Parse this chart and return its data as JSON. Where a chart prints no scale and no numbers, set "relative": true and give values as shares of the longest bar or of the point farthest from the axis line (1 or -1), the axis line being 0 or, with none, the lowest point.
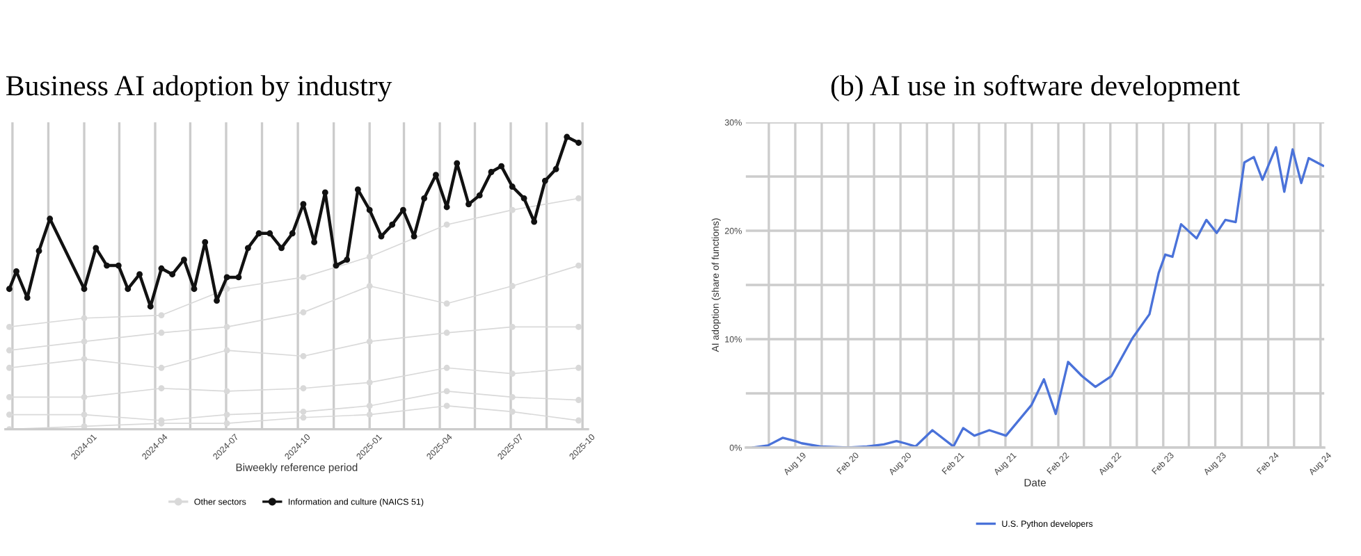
{
  "chart_data": [
    {
      "type": "line",
      "title": "Business AI adoption by industry",
      "xlabel": "Biweekly reference period",
      "relative": true,
      "grid": "x",
      "legend": "bottom",
      "marker": "circle",
      "line_style": "solid",
      "xlim": [
        "2023-09-22",
        "2025-10-08"
      ],
      "xticks": [
        {
          "value": "2023-10-01",
          "label": null
        },
        {
          "value": "2023-11-16",
          "label": null
        },
        {
          "value": "2024-01-01",
          "label": "2024-01"
        },
        {
          "value": "2024-02-15",
          "label": null
        },
        {
          "value": "2024-04-01",
          "label": "2024-04"
        },
        {
          "value": "2024-05-16",
          "label": null
        },
        {
          "value": "2024-07-01",
          "label": "2024-07"
        },
        {
          "value": "2024-08-16",
          "label": null
        },
        {
          "value": "2024-10-01",
          "label": "2024-10"
        },
        {
          "value": "2024-11-16",
          "label": null
        },
        {
          "value": "2025-01-01",
          "label": "2025-01"
        },
        {
          "value": "2025-02-14",
          "label": null
        },
        {
          "value": "2025-04-01",
          "label": "2025-04"
        },
        {
          "value": "2025-05-16",
          "label": null
        },
        {
          "value": "2025-07-01",
          "label": "2025-07"
        },
        {
          "value": "2025-08-16",
          "label": null
        },
        {
          "value": "2025-10-01",
          "label": "2025-10"
        }
      ],
      "series": [
        {
          "name": "Other sectors",
          "color": "#d9d9d9",
          "x": [
            "2023-09-27",
            "2024-01-01",
            "2024-04-09",
            "2024-07-02",
            "2024-10-08",
            "2025-01-01",
            "2025-04-10",
            "2025-07-03",
            "2025-09-26"
          ],
          "values": [
            0.35,
            0.38,
            0.39,
            0.48,
            0.52,
            0.59,
            0.7,
            0.75,
            0.79
          ]
        },
        {
          "color": "#d9d9d9",
          "x": [
            "2023-09-27",
            "2024-01-01",
            "2024-04-09",
            "2024-07-02",
            "2024-10-08",
            "2025-01-01",
            "2025-04-10",
            "2025-07-03",
            "2025-09-26"
          ],
          "values": [
            0.27,
            0.3,
            0.33,
            0.35,
            0.4,
            0.49,
            0.43,
            0.49,
            0.56
          ]
        },
        {
          "color": "#d9d9d9",
          "x": [
            "2023-09-27",
            "2024-01-01",
            "2024-04-09",
            "2024-07-02",
            "2024-10-08",
            "2025-01-01",
            "2025-04-10",
            "2025-07-03",
            "2025-09-26"
          ],
          "values": [
            0.21,
            0.24,
            0.21,
            0.27,
            0.25,
            0.3,
            0.33,
            0.35,
            0.35
          ]
        },
        {
          "color": "#d9d9d9",
          "x": [
            "2023-09-27",
            "2024-01-01",
            "2024-04-09",
            "2024-07-02",
            "2024-10-08",
            "2025-01-01",
            "2025-04-10",
            "2025-07-03",
            "2025-09-26"
          ],
          "values": [
            0.11,
            0.11,
            0.14,
            0.13,
            0.14,
            0.16,
            0.21,
            0.19,
            0.21
          ]
        },
        {
          "color": "#d9d9d9",
          "x": [
            "2023-09-27",
            "2024-01-01",
            "2024-04-09",
            "2024-07-02",
            "2024-10-08",
            "2025-01-01",
            "2025-04-10",
            "2025-07-03",
            "2025-09-26"
          ],
          "values": [
            0.05,
            0.05,
            0.03,
            0.05,
            0.06,
            0.08,
            0.13,
            0.11,
            0.1
          ]
        },
        {
          "color": "#d9d9d9",
          "x": [
            "2023-09-27",
            "2024-01-01",
            "2024-04-09",
            "2024-07-02",
            "2024-10-08",
            "2025-01-01",
            "2025-04-10",
            "2025-07-03",
            "2025-09-26"
          ],
          "values": [
            0,
            0.01,
            0.02,
            0.02,
            0.04,
            0.05,
            0.08,
            0.06,
            0.03
          ]
        },
        {
          "name": "Information and culture (NAICS 51)",
          "color": "#111111",
          "x": [
            "2023-09-27",
            "2023-10-06",
            "2023-10-20",
            "2023-11-04",
            "2023-11-18",
            "2024-01-01",
            "2024-01-16",
            "2024-01-30",
            "2024-02-14",
            "2024-02-26",
            "2024-03-12",
            "2024-03-26",
            "2024-04-09",
            "2024-04-23",
            "2024-05-08",
            "2024-05-21",
            "2024-06-04",
            "2024-06-19",
            "2024-07-02",
            "2024-07-17",
            "2024-07-29",
            "2024-08-12",
            "2024-08-26",
            "2024-09-10",
            "2024-09-24",
            "2024-10-08",
            "2024-10-22",
            "2024-11-05",
            "2024-11-19",
            "2024-12-03",
            "2024-12-17",
            "2025-01-01",
            "2025-01-16",
            "2025-01-30",
            "2025-02-13",
            "2025-02-27",
            "2025-03-12",
            "2025-03-27",
            "2025-04-10",
            "2025-04-23",
            "2025-05-08",
            "2025-05-22",
            "2025-06-06",
            "2025-06-19",
            "2025-07-03",
            "2025-07-18",
            "2025-07-31",
            "2025-08-14",
            "2025-08-28",
            "2025-09-11",
            "2025-09-26"
          ],
          "values": [
            0.48,
            0.54,
            0.45,
            0.61,
            0.72,
            0.48,
            0.62,
            0.56,
            0.56,
            0.48,
            0.53,
            0.42,
            0.55,
            0.53,
            0.58,
            0.48,
            0.64,
            0.44,
            0.52,
            0.52,
            0.62,
            0.67,
            0.67,
            0.62,
            0.67,
            0.77,
            0.64,
            0.81,
            0.56,
            0.58,
            0.82,
            0.75,
            0.66,
            0.7,
            0.75,
            0.66,
            0.79,
            0.87,
            0.76,
            0.91,
            0.77,
            0.8,
            0.88,
            0.9,
            0.83,
            0.79,
            0.71,
            0.85,
            0.89,
            1,
            0.98
          ]
        }
      ]
    },
    {
      "type": "line",
      "title": "(b) AI use in software development",
      "xlabel": "Date",
      "ylabel": "AI adoption (share of functions)",
      "grid": true,
      "legend": "bottom",
      "line_style": "solid",
      "xlim": [
        "2019-02-10",
        "2024-08-14"
      ],
      "ylim": [
        0,
        30
      ],
      "yticks": [
        {
          "value": 0,
          "label": "0%"
        },
        {
          "value": 5,
          "label": null
        },
        {
          "value": 10,
          "label": "10%"
        },
        {
          "value": 15,
          "label": null
        },
        {
          "value": 20,
          "label": "20%"
        },
        {
          "value": 25,
          "label": null
        },
        {
          "value": 30,
          "label": "30%"
        }
      ],
      "xticks": [
        {
          "value": "2019-05-01",
          "label": null
        },
        {
          "value": "2019-08-01",
          "label": "Aug 19"
        },
        {
          "value": "2019-11-01",
          "label": null
        },
        {
          "value": "2020-02-01",
          "label": "Feb 20"
        },
        {
          "value": "2020-05-01",
          "label": null
        },
        {
          "value": "2020-08-01",
          "label": "Aug 20"
        },
        {
          "value": "2020-11-01",
          "label": null
        },
        {
          "value": "2021-02-01",
          "label": "Feb 21"
        },
        {
          "value": "2021-05-01",
          "label": null
        },
        {
          "value": "2021-08-01",
          "label": "Aug 21"
        },
        {
          "value": "2021-11-01",
          "label": null
        },
        {
          "value": "2022-02-01",
          "label": "Feb 22"
        },
        {
          "value": "2022-05-01",
          "label": null
        },
        {
          "value": "2022-08-01",
          "label": "Aug 22"
        },
        {
          "value": "2022-11-01",
          "label": null
        },
        {
          "value": "2023-02-01",
          "label": "Feb 23"
        },
        {
          "value": "2023-05-01",
          "label": null
        },
        {
          "value": "2023-08-01",
          "label": "Aug 23"
        },
        {
          "value": "2023-11-01",
          "label": null
        },
        {
          "value": "2024-02-01",
          "label": "Feb 24"
        },
        {
          "value": "2024-05-01",
          "label": null
        },
        {
          "value": "2024-08-01",
          "label": "Aug 24"
        }
      ],
      "series": [
        {
          "name": "U.S. Python developers",
          "color": "#4a72d9",
          "x": [
            "2019-03-07",
            "2019-04-28",
            "2019-06-18",
            "2019-08-01",
            "2019-08-23",
            "2019-10-28",
            "2020-01-31",
            "2020-04-06",
            "2020-06-04",
            "2020-07-18",
            "2020-08-16",
            "2020-09-22",
            "2020-11-20",
            "2021-02-01",
            "2021-03-07",
            "2021-04-15",
            "2021-06-06",
            "2021-08-03",
            "2021-10-30",
            "2021-12-13",
            "2022-01-23",
            "2022-03-07",
            "2022-04-24",
            "2022-06-10",
            "2022-08-05",
            "2022-10-17",
            "2022-12-15",
            "2023-01-16",
            "2023-02-08",
            "2023-03-05",
            "2023-04-04",
            "2023-05-28",
            "2023-07-01",
            "2023-08-06",
            "2023-09-05",
            "2023-10-11",
            "2023-11-10",
            "2023-12-13",
            "2024-01-12",
            "2024-02-28",
            "2024-03-28",
            "2024-04-26",
            "2024-05-26",
            "2024-06-21",
            "2024-08-10"
          ],
          "values": [
            0,
            0.2,
            0.9,
            0.6,
            0.4,
            0.1,
            0,
            0.1,
            0.3,
            0.6,
            0.4,
            0.1,
            1.6,
            0.1,
            1.8,
            1.1,
            1.6,
            1.1,
            3.9,
            6.3,
            3.1,
            7.9,
            6.6,
            5.6,
            6.6,
            10.1,
            12.3,
            16.1,
            17.8,
            17.6,
            20.6,
            19.3,
            21.0,
            19.8,
            21.0,
            20.8,
            26.3,
            26.8,
            24.7,
            27.7,
            23.6,
            27.5,
            24.4,
            26.7,
            26.0
          ]
        }
      ]
    }
  ]
}
